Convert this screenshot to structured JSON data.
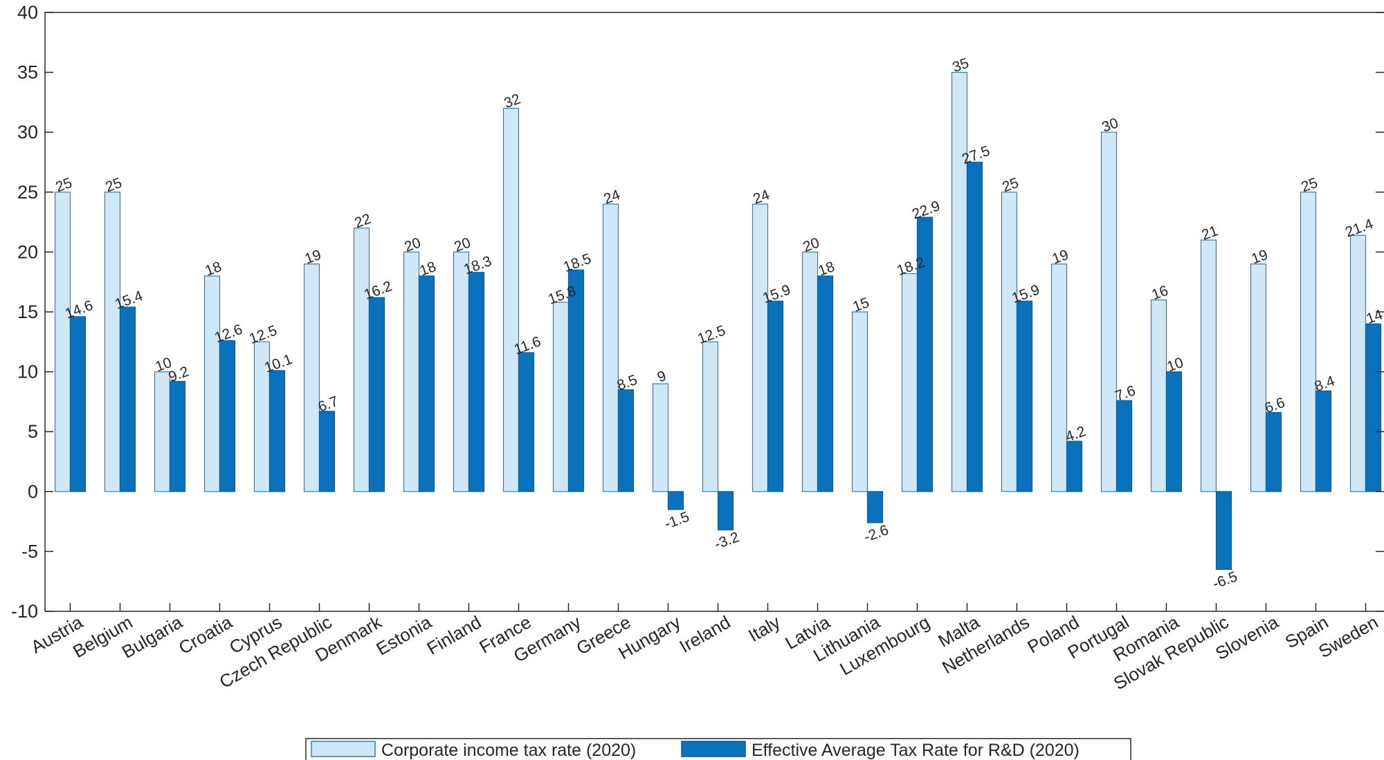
{
  "chart_data": {
    "type": "bar",
    "title": "",
    "xlabel": "",
    "ylabel": "",
    "ylim": [
      -10,
      40
    ],
    "yticks": [
      "40",
      "35",
      "30",
      "25",
      "20",
      "15",
      "10",
      "5",
      "0",
      "-5",
      "-10"
    ],
    "categories": [
      "Austria",
      "Belgium",
      "Bulgaria",
      "Croatia",
      "Cyprus",
      "Czech Republic",
      "Denmark",
      "Estonia",
      "Finland",
      "France",
      "Germany",
      "Greece",
      "Hungary",
      "Ireland",
      "Italy",
      "Latvia",
      "Lithuania",
      "Luxembourg",
      "Malta",
      "Netherlands",
      "Poland",
      "Portugal",
      "Romania",
      "Slovak Republic",
      "Slovenia",
      "Spain",
      "Sweden"
    ],
    "series": [
      {
        "name": "Corporate income tax rate (2020)",
        "color": "#cfe8f7",
        "edge": "#2b7fc0",
        "values": [
          25,
          25,
          10,
          18,
          12.5,
          19,
          22,
          20,
          20,
          32,
          15.8,
          24,
          9,
          12.5,
          24,
          20,
          15,
          18.2,
          35,
          25,
          19,
          30,
          16,
          21,
          19,
          25,
          21.4
        ],
        "labels": [
          "25",
          "25",
          "10",
          "18",
          "12.5",
          "19",
          "22",
          "20",
          "20",
          "32",
          "15.8",
          "24",
          "9",
          "12.5",
          "24",
          "20",
          "15",
          "18.2",
          "35",
          "25",
          "19",
          "30",
          "16",
          "21",
          "19",
          "25",
          "21.4"
        ]
      },
      {
        "name": "Effective Average Tax Rate for R&D (2020)",
        "color": "#0a72bd",
        "edge": "#0a5c9c",
        "values": [
          14.6,
          15.4,
          9.2,
          12.6,
          10.1,
          6.7,
          16.2,
          18,
          18.3,
          11.6,
          18.5,
          8.5,
          -1.5,
          -3.2,
          15.9,
          18,
          -2.6,
          22.9,
          27.5,
          15.9,
          4.2,
          7.6,
          10,
          -6.5,
          6.6,
          8.4,
          14
        ],
        "labels": [
          "14.6",
          "15.4",
          "9.2",
          "12.6",
          "10.1",
          "6.7",
          "16.2",
          "18",
          "18.3",
          "11.6",
          "18.5",
          "8.5",
          "-1.5",
          "-3.2",
          "15.9",
          "18",
          "-2.6",
          "22.9",
          "27.5",
          "15.9",
          "4.2",
          "7.6",
          "10",
          "-6.5",
          "6.6",
          "8.4",
          "14"
        ]
      }
    ],
    "grid": false,
    "legend": "bottom-center"
  }
}
